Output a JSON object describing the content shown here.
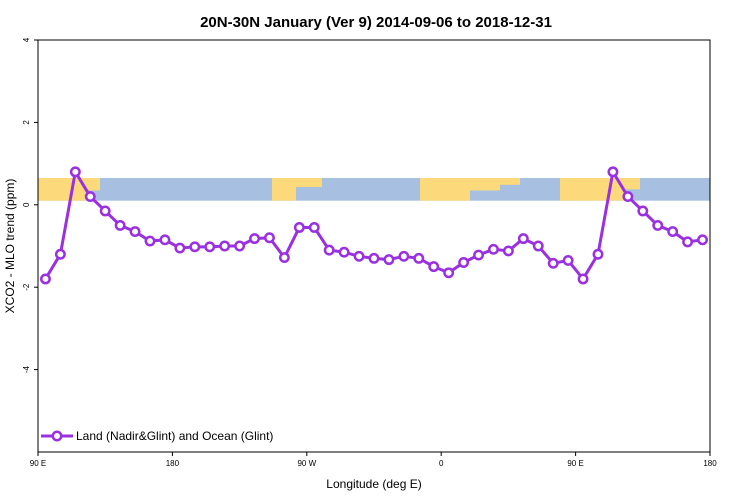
{
  "chart_data": {
    "type": "line",
    "title": "20N-30N January (Ver 9)   2014-09-06 to 2018-12-31",
    "xlabel": "Longitude (deg E)",
    "ylabel": "XCO2 - MLO trend (ppm)",
    "xlim": [
      90,
      540
    ],
    "ylim": [
      -6,
      4
    ],
    "x_ticks": [
      {
        "value": 90,
        "label": "90 E"
      },
      {
        "value": 180,
        "label": "180"
      },
      {
        "value": 270,
        "label": "90 W"
      },
      {
        "value": 360,
        "label": "0"
      },
      {
        "value": 450,
        "label": "90 E"
      },
      {
        "value": 540,
        "label": "180"
      }
    ],
    "y_ticks": [
      {
        "value": -4,
        "label": "-4"
      },
      {
        "value": -2,
        "label": "-2"
      },
      {
        "value": 0,
        "label": "0"
      },
      {
        "value": 2,
        "label": "2"
      },
      {
        "value": 4,
        "label": "4"
      }
    ],
    "legend_position": "bottom-left",
    "map_band": {
      "y_range": [
        0.1,
        0.65
      ],
      "ocean_color": "#a7bfe0",
      "land_color": "#fcd97a"
    },
    "series": [
      {
        "name": "Land (Nadir&Glint) and Ocean (Glint)",
        "color": "#9b30e0",
        "x": [
          95,
          105,
          115,
          125,
          135,
          145,
          155,
          165,
          175,
          185,
          195,
          205,
          215,
          225,
          235,
          245,
          255,
          265,
          275,
          285,
          295,
          305,
          315,
          325,
          335,
          345,
          355,
          365,
          375,
          385,
          395,
          405,
          415,
          425,
          435,
          445,
          455,
          465,
          475,
          485,
          495,
          505,
          515,
          525,
          535
        ],
        "y": [
          -1.8,
          -1.2,
          0.8,
          0.2,
          -0.15,
          -0.5,
          -0.65,
          -0.88,
          -0.85,
          -1.05,
          -1.02,
          -1.02,
          -1.0,
          -1.0,
          -0.82,
          -0.8,
          -1.28,
          -0.55,
          -0.55,
          -1.1,
          -1.15,
          -1.25,
          -1.3,
          -1.33,
          -1.25,
          -1.3,
          -1.5,
          -1.65,
          -1.4,
          -1.22,
          -1.08,
          -1.12,
          -0.82,
          -1.0,
          -1.42,
          -1.35,
          -1.8,
          -1.2,
          0.8,
          0.2,
          -0.15,
          -0.5,
          -0.65,
          -0.9,
          -0.85
        ]
      }
    ]
  }
}
